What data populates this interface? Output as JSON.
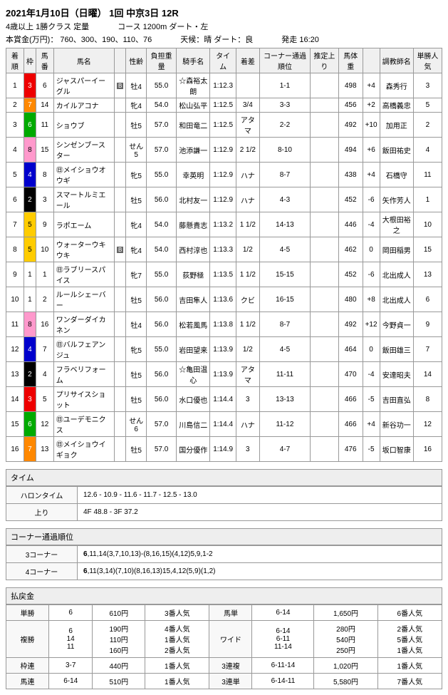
{
  "header": {
    "date_title": "2021年1月10日（日曜） 1回 中京3日 12R",
    "class_info": "4歳以上 1勝クラス 定量",
    "course": "コース 1200m ダート・左",
    "prize": "本賞金(万円)： 760、300、190、110、76",
    "weather": "天候：晴 ダート：良",
    "start": "発走 16:20"
  },
  "columns": [
    "着順",
    "枠",
    "馬番",
    "馬名",
    "",
    "性齢",
    "負担重量",
    "騎手名",
    "タイム",
    "着差",
    "コーナー通過順位",
    "推定上り",
    "馬体重",
    "",
    "調教師名",
    "単勝人気"
  ],
  "rows": [
    {
      "rank": "1",
      "waku": "3",
      "wc": "waku3",
      "num": "6",
      "name": "ジャスパーイーグル",
      "mark": "B",
      "sa": "牡4",
      "wt": "55.0",
      "jockey": "☆森裕太朗",
      "time": "1:12.3",
      "diff": "",
      "corner": "1-1",
      "agari": "",
      "bw": "498",
      "bwd": "+4",
      "trainer": "森秀行",
      "pop": "3"
    },
    {
      "rank": "2",
      "waku": "7",
      "wc": "waku7",
      "num": "14",
      "name": "カイルアコナ",
      "mark": "",
      "sa": "牝4",
      "wt": "54.0",
      "jockey": "松山弘平",
      "time": "1:12.5",
      "diff": "3/4",
      "corner": "3-3",
      "agari": "",
      "bw": "456",
      "bwd": "+2",
      "trainer": "高橋義忠",
      "pop": "5"
    },
    {
      "rank": "3",
      "waku": "6",
      "wc": "waku6",
      "num": "11",
      "name": "ショウブ",
      "mark": "",
      "sa": "牡5",
      "wt": "57.0",
      "jockey": "和田竜二",
      "time": "1:12.5",
      "diff": "アタマ",
      "corner": "2-2",
      "agari": "",
      "bw": "492",
      "bwd": "+10",
      "trainer": "加用正",
      "pop": "2"
    },
    {
      "rank": "4",
      "waku": "8",
      "wc": "waku8",
      "num": "15",
      "name": "シンゼンブースター",
      "mark": "",
      "sa": "せん5",
      "wt": "57.0",
      "jockey": "池添謙一",
      "time": "1:12.9",
      "diff": "2 1/2",
      "corner": "8-10",
      "agari": "",
      "bw": "494",
      "bwd": "+6",
      "trainer": "飯田祐史",
      "pop": "4"
    },
    {
      "rank": "5",
      "waku": "4",
      "wc": "waku4",
      "num": "8",
      "name": "㊐メイショウオウギ",
      "mark": "",
      "sa": "牝5",
      "wt": "55.0",
      "jockey": "幸英明",
      "time": "1:12.9",
      "diff": "ハナ",
      "corner": "8-7",
      "agari": "",
      "bw": "438",
      "bwd": "+4",
      "trainer": "石橋守",
      "pop": "11"
    },
    {
      "rank": "6",
      "waku": "2",
      "wc": "waku2",
      "num": "3",
      "name": "スマートルミエール",
      "mark": "",
      "sa": "牡5",
      "wt": "56.0",
      "jockey": "北村友一",
      "time": "1:12.9",
      "diff": "ハナ",
      "corner": "4-3",
      "agari": "",
      "bw": "452",
      "bwd": "-6",
      "trainer": "矢作芳人",
      "pop": "1"
    },
    {
      "rank": "7",
      "waku": "5",
      "wc": "waku5",
      "num": "9",
      "name": "ラポエーム",
      "mark": "",
      "sa": "牝4",
      "wt": "54.0",
      "jockey": "藤懸貴志",
      "time": "1:13.2",
      "diff": "1 1/2",
      "corner": "14-13",
      "agari": "",
      "bw": "446",
      "bwd": "-4",
      "trainer": "大根田裕之",
      "pop": "10"
    },
    {
      "rank": "8",
      "waku": "5",
      "wc": "waku5",
      "num": "10",
      "name": "ウォーターウキウキ",
      "mark": "B",
      "sa": "牝4",
      "wt": "54.0",
      "jockey": "西村淳也",
      "time": "1:13.3",
      "diff": "1/2",
      "corner": "4-5",
      "agari": "",
      "bw": "462",
      "bwd": "0",
      "trainer": "岡田稲男",
      "pop": "15"
    },
    {
      "rank": "9",
      "waku": "1",
      "wc": "waku1",
      "num": "1",
      "name": "㊐ラブリースパイス",
      "mark": "",
      "sa": "牝7",
      "wt": "55.0",
      "jockey": "荻野極",
      "time": "1:13.5",
      "diff": "1 1/2",
      "corner": "15-15",
      "agari": "",
      "bw": "452",
      "bwd": "-6",
      "trainer": "北出成人",
      "pop": "13"
    },
    {
      "rank": "10",
      "waku": "1",
      "wc": "waku1",
      "num": "2",
      "name": "ルールシェーバー",
      "mark": "",
      "sa": "牡5",
      "wt": "56.0",
      "jockey": "吉田隼人",
      "time": "1:13.6",
      "diff": "クビ",
      "corner": "16-15",
      "agari": "",
      "bw": "480",
      "bwd": "+8",
      "trainer": "北出成人",
      "pop": "6"
    },
    {
      "rank": "11",
      "waku": "8",
      "wc": "waku8",
      "num": "16",
      "name": "ワンダーダイカネン",
      "mark": "",
      "sa": "牡4",
      "wt": "56.0",
      "jockey": "松若風馬",
      "time": "1:13.8",
      "diff": "1 1/2",
      "corner": "8-7",
      "agari": "",
      "bw": "492",
      "bwd": "+12",
      "trainer": "今野貞一",
      "pop": "9"
    },
    {
      "rank": "12",
      "waku": "4",
      "wc": "waku4",
      "num": "7",
      "name": "㊐バルフェアンジュ",
      "mark": "",
      "sa": "牝5",
      "wt": "55.0",
      "jockey": "岩田望来",
      "time": "1:13.9",
      "diff": "1/2",
      "corner": "4-5",
      "agari": "",
      "bw": "464",
      "bwd": "0",
      "trainer": "飯田雄三",
      "pop": "7"
    },
    {
      "rank": "13",
      "waku": "2",
      "wc": "waku2",
      "num": "4",
      "name": "フラベリフォーム",
      "mark": "",
      "sa": "牡5",
      "wt": "56.0",
      "jockey": "☆亀田温心",
      "time": "1:13.9",
      "diff": "アタマ",
      "corner": "11-11",
      "agari": "",
      "bw": "470",
      "bwd": "-4",
      "trainer": "安達昭夫",
      "pop": "14"
    },
    {
      "rank": "14",
      "waku": "3",
      "wc": "waku3",
      "num": "5",
      "name": "プリサイスショット",
      "mark": "",
      "sa": "牡5",
      "wt": "56.0",
      "jockey": "水口優也",
      "time": "1:14.4",
      "diff": "3",
      "corner": "13-13",
      "agari": "",
      "bw": "466",
      "bwd": "-5",
      "trainer": "吉田直弘",
      "pop": "8"
    },
    {
      "rank": "15",
      "waku": "6",
      "wc": "waku6",
      "num": "12",
      "name": "㊐ユーデモニクス",
      "mark": "",
      "sa": "せん6",
      "wt": "57.0",
      "jockey": "川島信二",
      "time": "1:14.4",
      "diff": "ハナ",
      "corner": "11-12",
      "agari": "",
      "bw": "466",
      "bwd": "+4",
      "trainer": "新谷功一",
      "pop": "12"
    },
    {
      "rank": "16",
      "waku": "7",
      "wc": "waku7",
      "num": "13",
      "name": "㊐メイショウイギョク",
      "mark": "",
      "sa": "牡5",
      "wt": "57.0",
      "jockey": "国分優作",
      "time": "1:14.9",
      "diff": "3",
      "corner": "4-7",
      "agari": "",
      "bw": "476",
      "bwd": "-5",
      "trainer": "坂口智康",
      "pop": "16"
    }
  ],
  "time_section": {
    "title": "タイム",
    "halon_label": "ハロンタイム",
    "halon": "12.6 - 10.9 - 11.6 - 11.7 - 12.5 - 13.0",
    "agari_label": "上り",
    "agari": "4F 48.8 - 3F 37.2"
  },
  "corner_section": {
    "title": "コーナー通過順位",
    "c3_label": "3コーナー",
    "c3": "6,11,14(3,7,10,13)-(8,16,15)(4,12)5,9,1-2",
    "c4_label": "4コーナー",
    "c4": "6,11(3,14)(7,10)(8,16,13)15,4,12(5,9)(1,2)"
  },
  "payout": {
    "title": "払戻金",
    "rows": [
      {
        "type": "単勝",
        "combo": "6",
        "yen": "610円",
        "pop": "3番人気",
        "type2": "馬単",
        "combo2": "6-14",
        "yen2": "1,650円",
        "pop2": "6番人気"
      },
      {
        "type": "複勝",
        "combo": "6\n14\n11",
        "yen": "190円\n110円\n160円",
        "pop": "4番人気\n1番人気\n2番人気",
        "type2": "ワイド",
        "combo2": "6-14\n6-11\n11-14",
        "yen2": "280円\n540円\n250円",
        "pop2": "2番人気\n5番人気\n1番人気"
      },
      {
        "type": "枠連",
        "combo": "3-7",
        "yen": "440円",
        "pop": "1番人気",
        "type2": "3連複",
        "combo2": "6-11-14",
        "yen2": "1,020円",
        "pop2": "1番人気"
      },
      {
        "type": "馬連",
        "combo": "6-14",
        "yen": "510円",
        "pop": "1番人気",
        "type2": "3連単",
        "combo2": "6-14-11",
        "yen2": "5,580円",
        "pop2": "7番人気"
      }
    ]
  }
}
